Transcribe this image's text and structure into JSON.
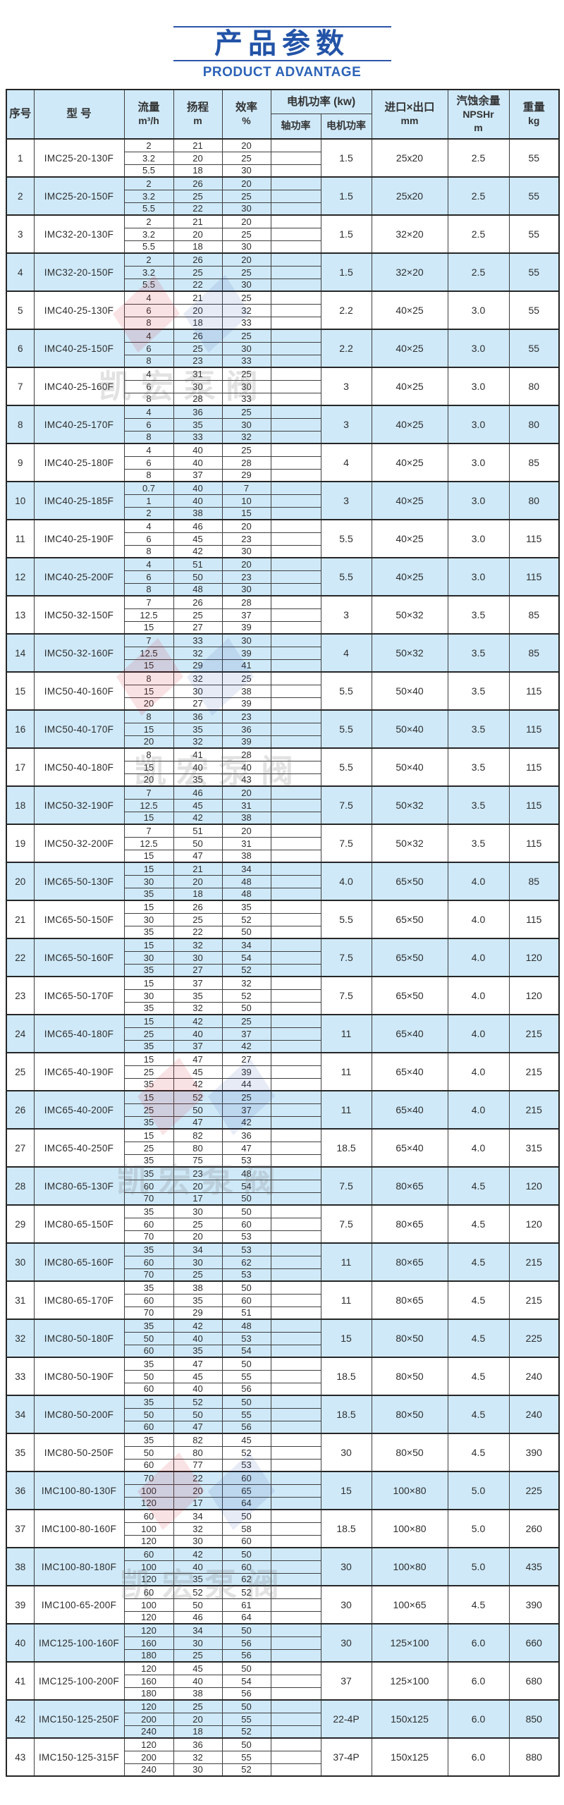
{
  "page": {
    "title": "产品参数",
    "subtitle": "PRODUCT ADVANTAGE"
  },
  "colors": {
    "accent_blue": "#2253a7",
    "subtitle_blue": "#2b62b8",
    "header_bg": "#cfe9f8",
    "alt_row_bg": "#cfe9f8",
    "border": "#3f3f3f",
    "text": "#2e2e2e"
  },
  "watermark": {
    "text": "凯宏泵阀"
  },
  "table": {
    "headers": {
      "serial": "序号",
      "model": "型 号",
      "flow_name": "流量",
      "flow_unit": "m³/h",
      "head_name": "扬程",
      "head_unit": "m",
      "eff_name": "效率",
      "eff_unit": "%",
      "motor_group": "电机功率 (kw)",
      "shaft_power": "轴功率",
      "motor_power": "电机功率",
      "inlet_name": "进口×出口",
      "inlet_unit": "mm",
      "npsh_line1": "汽蚀余量",
      "npsh_line2": "NPSHr",
      "npsh_line3": "m",
      "weight_name": "重量",
      "weight_unit": "kg"
    },
    "rows": [
      {
        "no": "1",
        "model": "IMC25-20-130F",
        "flow": [
          "2",
          "3.2",
          "5.5"
        ],
        "head": [
          "21",
          "20",
          "18"
        ],
        "eff": [
          "20",
          "25",
          "30"
        ],
        "motor": "1.5",
        "inlet": "25x20",
        "npsh": "2.5",
        "weight": "55"
      },
      {
        "no": "2",
        "model": "IMC25-20-150F",
        "flow": [
          "2",
          "3.2",
          "5.5"
        ],
        "head": [
          "26",
          "25",
          "22"
        ],
        "eff": [
          "20",
          "25",
          "30"
        ],
        "motor": "1.5",
        "inlet": "25x20",
        "npsh": "2.5",
        "weight": "55"
      },
      {
        "no": "3",
        "model": "IMC32-20-130F",
        "flow": [
          "2",
          "3.2",
          "5.5"
        ],
        "head": [
          "21",
          "20",
          "18"
        ],
        "eff": [
          "20",
          "25",
          "30"
        ],
        "motor": "1.5",
        "inlet": "32×20",
        "npsh": "2.5",
        "weight": "55"
      },
      {
        "no": "4",
        "model": "IMC32-20-150F",
        "flow": [
          "2",
          "3.2",
          "5.5"
        ],
        "head": [
          "26",
          "25",
          "22"
        ],
        "eff": [
          "20",
          "25",
          "30"
        ],
        "motor": "1.5",
        "inlet": "32×20",
        "npsh": "2.5",
        "weight": "55"
      },
      {
        "no": "5",
        "model": "IMC40-25-130F",
        "flow": [
          "4",
          "6",
          "8"
        ],
        "head": [
          "21",
          "20",
          "18"
        ],
        "eff": [
          "25",
          "32",
          "33"
        ],
        "motor": "2.2",
        "inlet": "40×25",
        "npsh": "3.0",
        "weight": "55"
      },
      {
        "no": "6",
        "model": "IMC40-25-150F",
        "flow": [
          "4",
          "6",
          "8"
        ],
        "head": [
          "26",
          "25",
          "23"
        ],
        "eff": [
          "25",
          "30",
          "33"
        ],
        "motor": "2.2",
        "inlet": "40×25",
        "npsh": "3.0",
        "weight": "55"
      },
      {
        "no": "7",
        "model": "IMC40-25-160F",
        "flow": [
          "4",
          "6",
          "8"
        ],
        "head": [
          "31",
          "30",
          "28"
        ],
        "eff": [
          "25",
          "30",
          "33"
        ],
        "motor": "3",
        "inlet": "40×25",
        "npsh": "3.0",
        "weight": "80"
      },
      {
        "no": "8",
        "model": "IMC40-25-170F",
        "flow": [
          "4",
          "6",
          "8"
        ],
        "head": [
          "36",
          "35",
          "33"
        ],
        "eff": [
          "25",
          "30",
          "32"
        ],
        "motor": "3",
        "inlet": "40×25",
        "npsh": "3.0",
        "weight": "80"
      },
      {
        "no": "9",
        "model": "IMC40-25-180F",
        "flow": [
          "4",
          "6",
          "8"
        ],
        "head": [
          "40",
          "40",
          "37"
        ],
        "eff": [
          "25",
          "28",
          "29"
        ],
        "motor": "4",
        "inlet": "40×25",
        "npsh": "3.0",
        "weight": "85"
      },
      {
        "no": "10",
        "model": "IMC40-25-185F",
        "flow": [
          "0.7",
          "1",
          "2"
        ],
        "head": [
          "40",
          "40",
          "38"
        ],
        "eff": [
          "7",
          "10",
          "15"
        ],
        "motor": "3",
        "inlet": "40×25",
        "npsh": "3.0",
        "weight": "80"
      },
      {
        "no": "11",
        "model": "IMC40-25-190F",
        "flow": [
          "4",
          "6",
          "8"
        ],
        "head": [
          "46",
          "45",
          "42"
        ],
        "eff": [
          "20",
          "23",
          "30"
        ],
        "motor": "5.5",
        "inlet": "40×25",
        "npsh": "3.0",
        "weight": "115"
      },
      {
        "no": "12",
        "model": "IMC40-25-200F",
        "flow": [
          "4",
          "6",
          "8"
        ],
        "head": [
          "51",
          "50",
          "48"
        ],
        "eff": [
          "20",
          "23",
          "30"
        ],
        "motor": "5.5",
        "inlet": "40×25",
        "npsh": "3.0",
        "weight": "115"
      },
      {
        "no": "13",
        "model": "IMC50-32-150F",
        "flow": [
          "7",
          "12.5",
          "15"
        ],
        "head": [
          "26",
          "25",
          "27"
        ],
        "eff": [
          "28",
          "37",
          "39"
        ],
        "motor": "3",
        "inlet": "50×32",
        "npsh": "3.5",
        "weight": "85"
      },
      {
        "no": "14",
        "model": "IMC50-32-160F",
        "flow": [
          "7",
          "12.5",
          "15"
        ],
        "head": [
          "33",
          "32",
          "29"
        ],
        "eff": [
          "30",
          "39",
          "41"
        ],
        "motor": "4",
        "inlet": "50×32",
        "npsh": "3.5",
        "weight": "85"
      },
      {
        "no": "15",
        "model": "IMC50-40-160F",
        "flow": [
          "8",
          "15",
          "20"
        ],
        "head": [
          "32",
          "30",
          "27"
        ],
        "eff": [
          "25",
          "38",
          "39"
        ],
        "motor": "5.5",
        "inlet": "50×40",
        "npsh": "3.5",
        "weight": "115"
      },
      {
        "no": "16",
        "model": "IMC50-40-170F",
        "flow": [
          "8",
          "15",
          "20"
        ],
        "head": [
          "36",
          "35",
          "32"
        ],
        "eff": [
          "23",
          "36",
          "39"
        ],
        "motor": "5.5",
        "inlet": "50×40",
        "npsh": "3.5",
        "weight": "115"
      },
      {
        "no": "17",
        "model": "IMC50-40-180F",
        "flow": [
          "8",
          "15",
          "20"
        ],
        "head": [
          "41",
          "40",
          "35"
        ],
        "eff": [
          "28",
          "40",
          "43"
        ],
        "motor": "5.5",
        "inlet": "50×40",
        "npsh": "3.5",
        "weight": "115"
      },
      {
        "no": "18",
        "model": "IMC50-32-190F",
        "flow": [
          "7",
          "12.5",
          "15"
        ],
        "head": [
          "46",
          "45",
          "42"
        ],
        "eff": [
          "20",
          "31",
          "38"
        ],
        "motor": "7.5",
        "inlet": "50×32",
        "npsh": "3.5",
        "weight": "115"
      },
      {
        "no": "19",
        "model": "IMC50-32-200F",
        "flow": [
          "7",
          "12.5",
          "15"
        ],
        "head": [
          "51",
          "50",
          "47"
        ],
        "eff": [
          "20",
          "31",
          "38"
        ],
        "motor": "7.5",
        "inlet": "50×32",
        "npsh": "3.5",
        "weight": "115"
      },
      {
        "no": "20",
        "model": "IMC65-50-130F",
        "flow": [
          "15",
          "30",
          "35"
        ],
        "head": [
          "21",
          "20",
          "18"
        ],
        "eff": [
          "34",
          "48",
          "48"
        ],
        "motor": "4.0",
        "inlet": "65×50",
        "npsh": "4.0",
        "weight": "85"
      },
      {
        "no": "21",
        "model": "IMC65-50-150F",
        "flow": [
          "15",
          "30",
          "35"
        ],
        "head": [
          "26",
          "25",
          "22"
        ],
        "eff": [
          "35",
          "52",
          "50"
        ],
        "motor": "5.5",
        "inlet": "65×50",
        "npsh": "4.0",
        "weight": "115"
      },
      {
        "no": "22",
        "model": "IMC65-50-160F",
        "flow": [
          "15",
          "30",
          "35"
        ],
        "head": [
          "32",
          "30",
          "27"
        ],
        "eff": [
          "34",
          "54",
          "52"
        ],
        "motor": "7.5",
        "inlet": "65×50",
        "npsh": "4.0",
        "weight": "120"
      },
      {
        "no": "23",
        "model": "IMC65-50-170F",
        "flow": [
          "15",
          "30",
          "35"
        ],
        "head": [
          "37",
          "35",
          "32"
        ],
        "eff": [
          "32",
          "52",
          "50"
        ],
        "motor": "7.5",
        "inlet": "65×50",
        "npsh": "4.0",
        "weight": "120"
      },
      {
        "no": "24",
        "model": "IMC65-40-180F",
        "flow": [
          "15",
          "25",
          "35"
        ],
        "head": [
          "42",
          "40",
          "37"
        ],
        "eff": [
          "25",
          "37",
          "42"
        ],
        "motor": "11",
        "inlet": "65×40",
        "npsh": "4.0",
        "weight": "215"
      },
      {
        "no": "25",
        "model": "IMC65-40-190F",
        "flow": [
          "15",
          "25",
          "35"
        ],
        "head": [
          "47",
          "45",
          "42"
        ],
        "eff": [
          "27",
          "39",
          "44"
        ],
        "motor": "11",
        "inlet": "65×40",
        "npsh": "4.0",
        "weight": "215"
      },
      {
        "no": "26",
        "model": "IMC65-40-200F",
        "flow": [
          "15",
          "25",
          "35"
        ],
        "head": [
          "52",
          "50",
          "47"
        ],
        "eff": [
          "25",
          "37",
          "42"
        ],
        "motor": "11",
        "inlet": "65×40",
        "npsh": "4.0",
        "weight": "215"
      },
      {
        "no": "27",
        "model": "IMC65-40-250F",
        "flow": [
          "15",
          "25",
          "35"
        ],
        "head": [
          "82",
          "80",
          "75"
        ],
        "eff": [
          "36",
          "47",
          "53"
        ],
        "motor": "18.5",
        "inlet": "65×40",
        "npsh": "4.0",
        "weight": "315"
      },
      {
        "no": "28",
        "model": "IMC80-65-130F",
        "flow": [
          "35",
          "60",
          "70"
        ],
        "head": [
          "23",
          "20",
          "17"
        ],
        "eff": [
          "48",
          "54",
          "50"
        ],
        "motor": "7.5",
        "inlet": "80×65",
        "npsh": "4.5",
        "weight": "120"
      },
      {
        "no": "29",
        "model": "IMC80-65-150F",
        "flow": [
          "35",
          "60",
          "70"
        ],
        "head": [
          "30",
          "25",
          "20"
        ],
        "eff": [
          "50",
          "60",
          "53"
        ],
        "motor": "7.5",
        "inlet": "80×65",
        "npsh": "4.5",
        "weight": "120"
      },
      {
        "no": "30",
        "model": "IMC80-65-160F",
        "flow": [
          "35",
          "60",
          "70"
        ],
        "head": [
          "34",
          "30",
          "25"
        ],
        "eff": [
          "53",
          "62",
          "53"
        ],
        "motor": "11",
        "inlet": "80×65",
        "npsh": "4.5",
        "weight": "215"
      },
      {
        "no": "31",
        "model": "IMC80-65-170F",
        "flow": [
          "35",
          "60",
          "70"
        ],
        "head": [
          "38",
          "35",
          "29"
        ],
        "eff": [
          "50",
          "60",
          "51"
        ],
        "motor": "11",
        "inlet": "80×65",
        "npsh": "4.5",
        "weight": "215"
      },
      {
        "no": "32",
        "model": "IMC80-50-180F",
        "flow": [
          "35",
          "50",
          "60"
        ],
        "head": [
          "42",
          "40",
          "35"
        ],
        "eff": [
          "48",
          "53",
          "54"
        ],
        "motor": "15",
        "inlet": "80×50",
        "npsh": "4.5",
        "weight": "225"
      },
      {
        "no": "33",
        "model": "IMC80-50-190F",
        "flow": [
          "35",
          "50",
          "60"
        ],
        "head": [
          "47",
          "45",
          "40"
        ],
        "eff": [
          "50",
          "55",
          "56"
        ],
        "motor": "18.5",
        "inlet": "80×50",
        "npsh": "4.5",
        "weight": "240"
      },
      {
        "no": "34",
        "model": "IMC80-50-200F",
        "flow": [
          "35",
          "50",
          "60"
        ],
        "head": [
          "52",
          "50",
          "47"
        ],
        "eff": [
          "50",
          "55",
          "56"
        ],
        "motor": "18.5",
        "inlet": "80×50",
        "npsh": "4.5",
        "weight": "240"
      },
      {
        "no": "35",
        "model": "IMC80-50-250F",
        "flow": [
          "35",
          "50",
          "60"
        ],
        "head": [
          "82",
          "80",
          "77"
        ],
        "eff": [
          "45",
          "52",
          "53"
        ],
        "motor": "30",
        "inlet": "80×50",
        "npsh": "4.5",
        "weight": "390"
      },
      {
        "no": "36",
        "model": "IMC100-80-130F",
        "flow": [
          "70",
          "100",
          "120"
        ],
        "head": [
          "22",
          "20",
          "17"
        ],
        "eff": [
          "60",
          "65",
          "64"
        ],
        "motor": "15",
        "inlet": "100×80",
        "npsh": "5.0",
        "weight": "225"
      },
      {
        "no": "37",
        "model": "IMC100-80-160F",
        "flow": [
          "60",
          "100",
          "120"
        ],
        "head": [
          "34",
          "32",
          "30"
        ],
        "eff": [
          "50",
          "58",
          "60"
        ],
        "motor": "18.5",
        "inlet": "100×80",
        "npsh": "5.0",
        "weight": "260"
      },
      {
        "no": "38",
        "model": "IMC100-80-180F",
        "flow": [
          "60",
          "100",
          "120"
        ],
        "head": [
          "42",
          "40",
          "35"
        ],
        "eff": [
          "50",
          "60",
          "62"
        ],
        "motor": "30",
        "inlet": "100×80",
        "npsh": "5.0",
        "weight": "435"
      },
      {
        "no": "39",
        "model": "IMC100-65-200F",
        "flow": [
          "60",
          "100",
          "120"
        ],
        "head": [
          "52",
          "50",
          "46"
        ],
        "eff": [
          "52",
          "61",
          "64"
        ],
        "motor": "30",
        "inlet": "100×65",
        "npsh": "4.5",
        "weight": "390"
      },
      {
        "no": "40",
        "model": "IMC125-100-160F",
        "flow": [
          "120",
          "160",
          "180"
        ],
        "head": [
          "34",
          "30",
          "25"
        ],
        "eff": [
          "50",
          "56",
          "56"
        ],
        "motor": "30",
        "inlet": "125×100",
        "npsh": "6.0",
        "weight": "660"
      },
      {
        "no": "41",
        "model": "IMC125-100-200F",
        "flow": [
          "120",
          "160",
          "180"
        ],
        "head": [
          "45",
          "40",
          "38"
        ],
        "eff": [
          "50",
          "54",
          "56"
        ],
        "motor": "37",
        "inlet": "125×100",
        "npsh": "6.0",
        "weight": "680"
      },
      {
        "no": "42",
        "model": "IMC150-125-250F",
        "flow": [
          "120",
          "200",
          "240"
        ],
        "head": [
          "25",
          "20",
          "18"
        ],
        "eff": [
          "50",
          "55",
          "52"
        ],
        "motor": "22-4P",
        "inlet": "150x125",
        "npsh": "6.0",
        "weight": "850"
      },
      {
        "no": "43",
        "model": "IMC150-125-315F",
        "flow": [
          "120",
          "200",
          "240"
        ],
        "head": [
          "36",
          "32",
          "30"
        ],
        "eff": [
          "50",
          "55",
          "52"
        ],
        "motor": "37-4P",
        "inlet": "150x125",
        "npsh": "6.0",
        "weight": "880"
      }
    ]
  }
}
